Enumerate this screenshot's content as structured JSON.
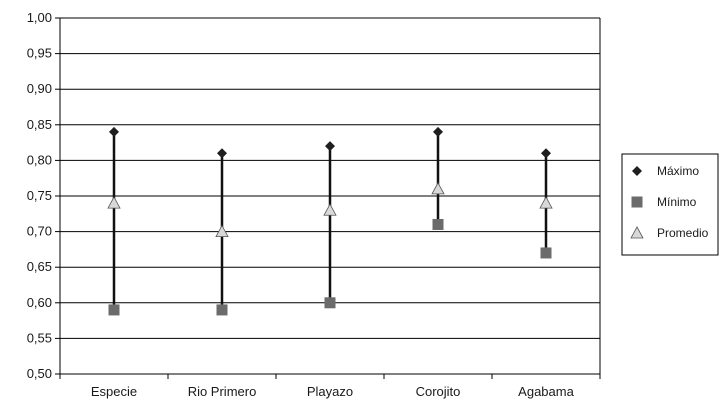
{
  "chart_data": {
    "type": "scatter",
    "title": "",
    "xlabel": "",
    "ylabel": "",
    "categories": [
      "Especie",
      "Rio Primero",
      "Playazo",
      "Corojito",
      "Agabama"
    ],
    "ylim": [
      0.5,
      1.0
    ],
    "yticks": [
      "0,50",
      "0,55",
      "0,60",
      "0,65",
      "0,70",
      "0,75",
      "0,80",
      "0,85",
      "0,90",
      "0,95",
      "1,00"
    ],
    "grid": true,
    "legend_position": "right",
    "series": [
      {
        "name": "Máximo",
        "marker": "diamond",
        "color": "#1f1f1f",
        "values": [
          0.84,
          0.81,
          0.82,
          0.84,
          0.81
        ]
      },
      {
        "name": "Mínimo",
        "marker": "square",
        "color": "#6b6b6b",
        "values": [
          0.59,
          0.59,
          0.6,
          0.71,
          0.67
        ]
      },
      {
        "name": "Promedio",
        "marker": "triangle",
        "color": "#d9d9d9",
        "values": [
          0.74,
          0.7,
          0.73,
          0.76,
          0.74
        ]
      }
    ]
  }
}
